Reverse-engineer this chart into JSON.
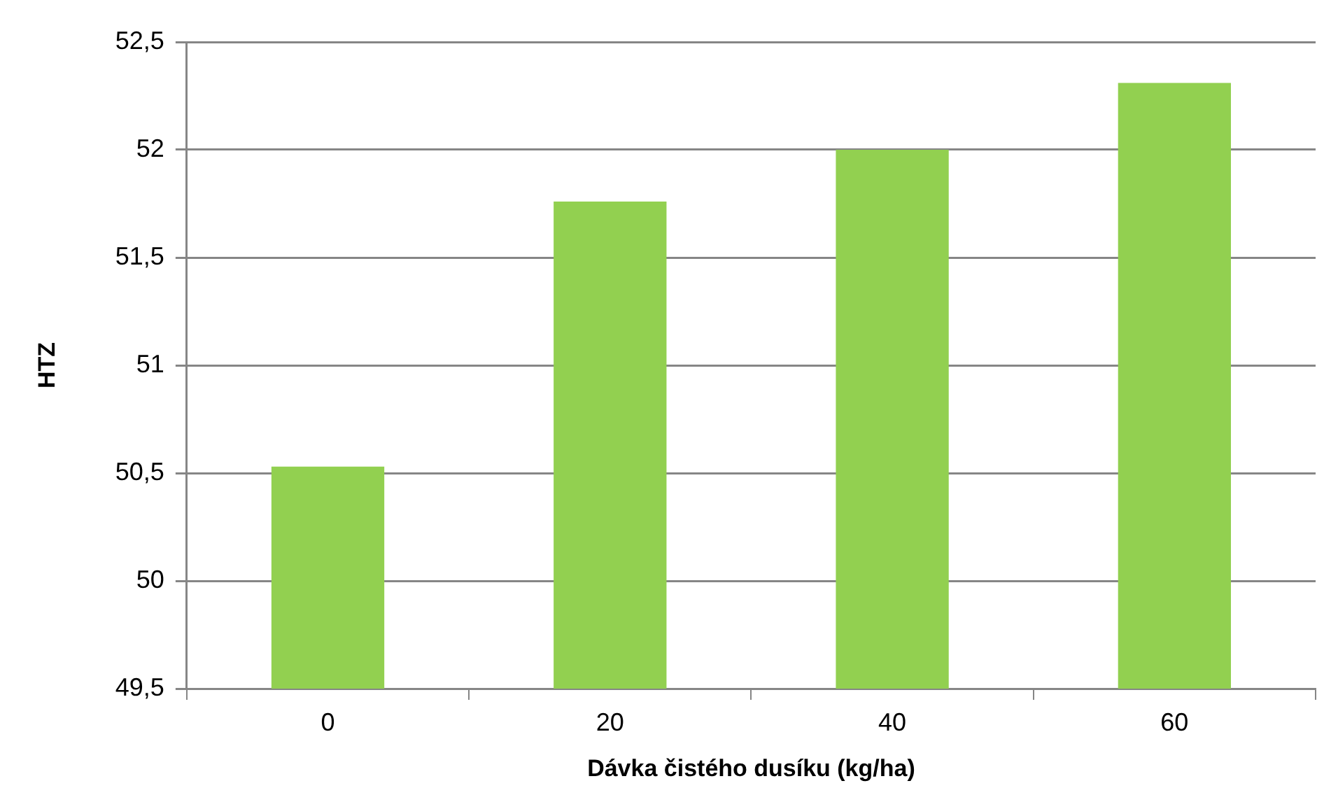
{
  "chart_data": {
    "type": "bar",
    "xlabel": "Dávka čistého dusíku (kg/ha)",
    "ylabel": "HTZ",
    "categories": [
      "0",
      "20",
      "40",
      "60"
    ],
    "series": [
      {
        "color": "#92d050",
        "values": [
          50.53,
          51.76,
          52.0,
          52.31
        ]
      }
    ],
    "ylim": [
      49.5,
      52.5
    ],
    "yticks": [
      {
        "value": 49.5,
        "label": "49,5"
      },
      {
        "value": 50,
        "label": "50"
      },
      {
        "value": 50.5,
        "label": "50,5"
      },
      {
        "value": 51,
        "label": "51"
      },
      {
        "value": 51.5,
        "label": "51,5"
      },
      {
        "value": 52,
        "label": "52"
      },
      {
        "value": 52.5,
        "label": "52,5"
      }
    ],
    "grid": "y",
    "legend": false
  }
}
